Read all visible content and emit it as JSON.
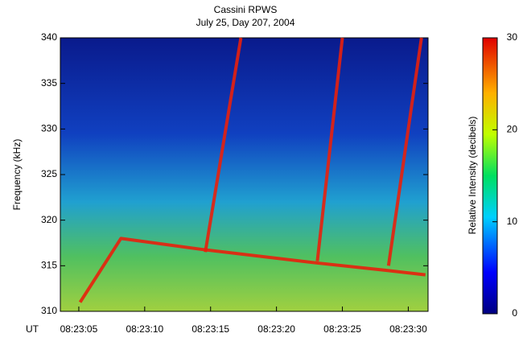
{
  "chart_data": {
    "type": "spectrogram",
    "title": "Cassini RPWS",
    "subtitle": "July 25, Day 207, 2004",
    "ylabel": "Frequency (kHz)",
    "xlabel": "UT",
    "xlim": [
      "08:23:03.6",
      "08:23:31.5"
    ],
    "xticks": [
      "08:23:05",
      "08:23:10",
      "08:23:15",
      "08:23:20",
      "08:23:25",
      "08:23:30"
    ],
    "ylim": [
      310,
      340
    ],
    "yticks": [
      310,
      315,
      320,
      325,
      330,
      335,
      340
    ],
    "colorbar_label": "Relative Intensity (decibels)",
    "clim": [
      0,
      30
    ],
    "cticks": [
      0,
      10,
      20,
      30
    ],
    "series": [
      {
        "color": "#e8200c",
        "x": [
          "08:23:05.1",
          "08:23:08.2",
          "08:23:14.3",
          "08:23:23.1",
          "08:23:28.3",
          "08:23:31.3"
        ],
        "values": [
          311,
          318,
          316.8,
          315.3,
          314.5,
          314
        ]
      },
      {
        "color": "#e8200c",
        "x": [
          "08:23:14.6",
          "08:23:17.3"
        ],
        "values": [
          316.5,
          340
        ]
      },
      {
        "color": "#e8200c",
        "x": [
          "08:23:23.1",
          "08:23:25.0"
        ],
        "values": [
          315.5,
          340
        ]
      },
      {
        "color": "#e8200c",
        "x": [
          "08:23:28.5",
          "08:23:31.0"
        ],
        "values": [
          315,
          340
        ]
      }
    ]
  }
}
